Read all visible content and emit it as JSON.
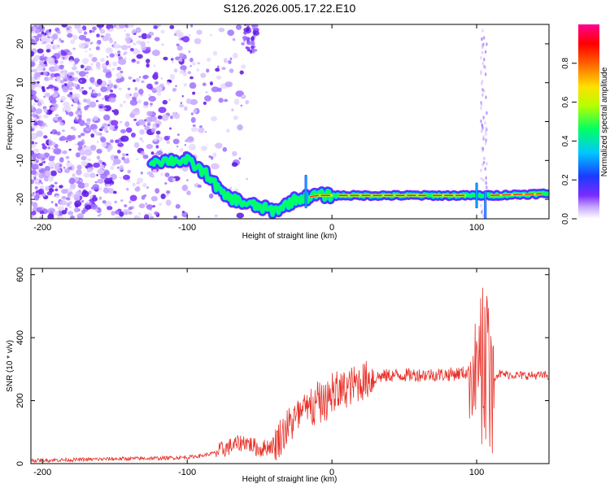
{
  "title": "S126.2026.005.17.22.E10",
  "colors": {
    "snr_line": "#e8322a",
    "background": "#ffffff",
    "frame": "#000000"
  },
  "chart_data": [
    {
      "type": "heatmap",
      "name": "spectrogram",
      "xlabel": "Height of straight line (km)",
      "ylabel": "Frequency (Hz)",
      "xlim": [
        -208,
        150
      ],
      "ylim": [
        -25,
        25
      ],
      "x_ticks": [
        -200,
        -100,
        0,
        100
      ],
      "y_ticks": [
        20,
        10,
        0,
        -10,
        -20
      ],
      "colorbar": {
        "label": "Normalized spectral amplitude",
        "range": [
          0,
          1
        ],
        "ticks": [
          "0.0",
          "0.2",
          "0.4",
          "0.6",
          "0.8"
        ],
        "colors": [
          "#ffffff",
          "#c7a8ff",
          "#7a2cff",
          "#1a3cff",
          "#00c8ff",
          "#00ff64",
          "#b4ff00",
          "#ffe000",
          "#ff6000",
          "#ff0000",
          "#ff0090"
        ]
      },
      "ridge": {
        "description_points": [
          {
            "x": -120,
            "f": -10
          },
          {
            "x": -100,
            "f": -10
          },
          {
            "x": -85,
            "f": -14
          },
          {
            "x": -75,
            "f": -19
          },
          {
            "x": -60,
            "f": -21
          },
          {
            "x": -50,
            "f": -22
          },
          {
            "x": -40,
            "f": -23
          },
          {
            "x": -25,
            "f": -20
          },
          {
            "x": -10,
            "f": -19
          },
          {
            "x": 0,
            "f": -19
          },
          {
            "x": 50,
            "f": -19
          },
          {
            "x": 100,
            "f": -19
          },
          {
            "x": 110,
            "f": -19
          },
          {
            "x": 150,
            "f": -18.5
          }
        ]
      }
    },
    {
      "type": "line",
      "name": "snr",
      "xlabel": "Height of straight line (km)",
      "ylabel": "SNR (10 * v/v)",
      "xlim": [
        -208,
        150
      ],
      "ylim": [
        0,
        620
      ],
      "x_ticks": [
        -200,
        -100,
        0,
        100
      ],
      "y_ticks": [
        0,
        200,
        400,
        600
      ],
      "series": [
        {
          "name": "SNR",
          "x": [
            -208,
            -180,
            -150,
            -120,
            -100,
            -90,
            -80,
            -70,
            -60,
            -50,
            -40,
            -30,
            -20,
            -10,
            0,
            10,
            20,
            30,
            40,
            60,
            80,
            95,
            100,
            103,
            105,
            107,
            108,
            110,
            115,
            130,
            150
          ],
          "y": [
            10,
            12,
            15,
            17,
            20,
            25,
            35,
            55,
            70,
            45,
            60,
            120,
            160,
            180,
            210,
            240,
            260,
            275,
            280,
            282,
            283,
            290,
            300,
            380,
            120,
            500,
            300,
            270,
            285,
            280,
            280
          ]
        }
      ]
    }
  ]
}
